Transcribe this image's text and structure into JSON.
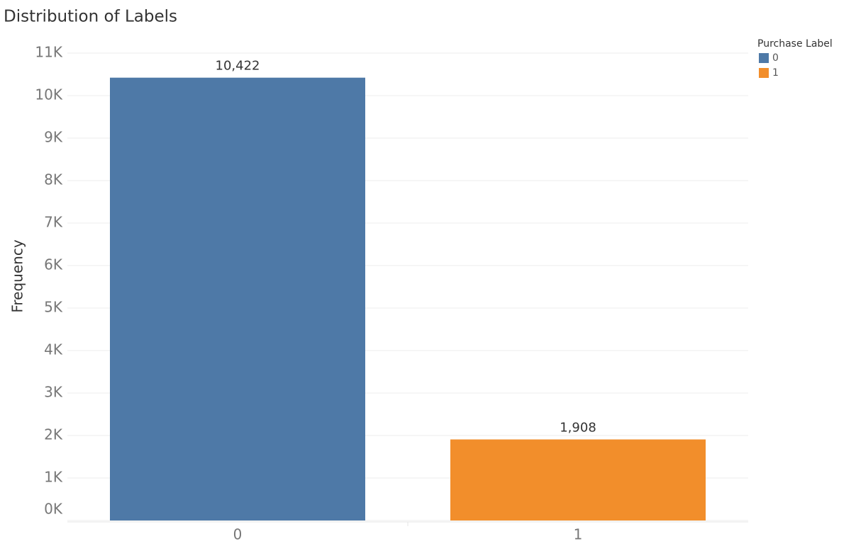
{
  "chart_data": {
    "type": "bar",
    "title": "Distribution of Labels",
    "y_label": "Frequency",
    "legend_title": "Purchase Label",
    "legend_position": "top-right",
    "categories": [
      "0",
      "1"
    ],
    "values": [
      10422,
      1908
    ],
    "value_labels": [
      "10,422",
      "1,908"
    ],
    "colors": [
      "#4e79a7",
      "#f28e2b"
    ],
    "ylim": [
      0,
      11500
    ],
    "yticks": [
      {
        "value": 0,
        "label": "0K"
      },
      {
        "value": 1000,
        "label": "1K"
      },
      {
        "value": 2000,
        "label": "2K"
      },
      {
        "value": 3000,
        "label": "3K"
      },
      {
        "value": 4000,
        "label": "4K"
      },
      {
        "value": 5000,
        "label": "5K"
      },
      {
        "value": 6000,
        "label": "6K"
      },
      {
        "value": 7000,
        "label": "7K"
      },
      {
        "value": 8000,
        "label": "8K"
      },
      {
        "value": 9000,
        "label": "9K"
      },
      {
        "value": 10000,
        "label": "10K"
      },
      {
        "value": 11000,
        "label": "11K"
      }
    ],
    "grid": true
  }
}
